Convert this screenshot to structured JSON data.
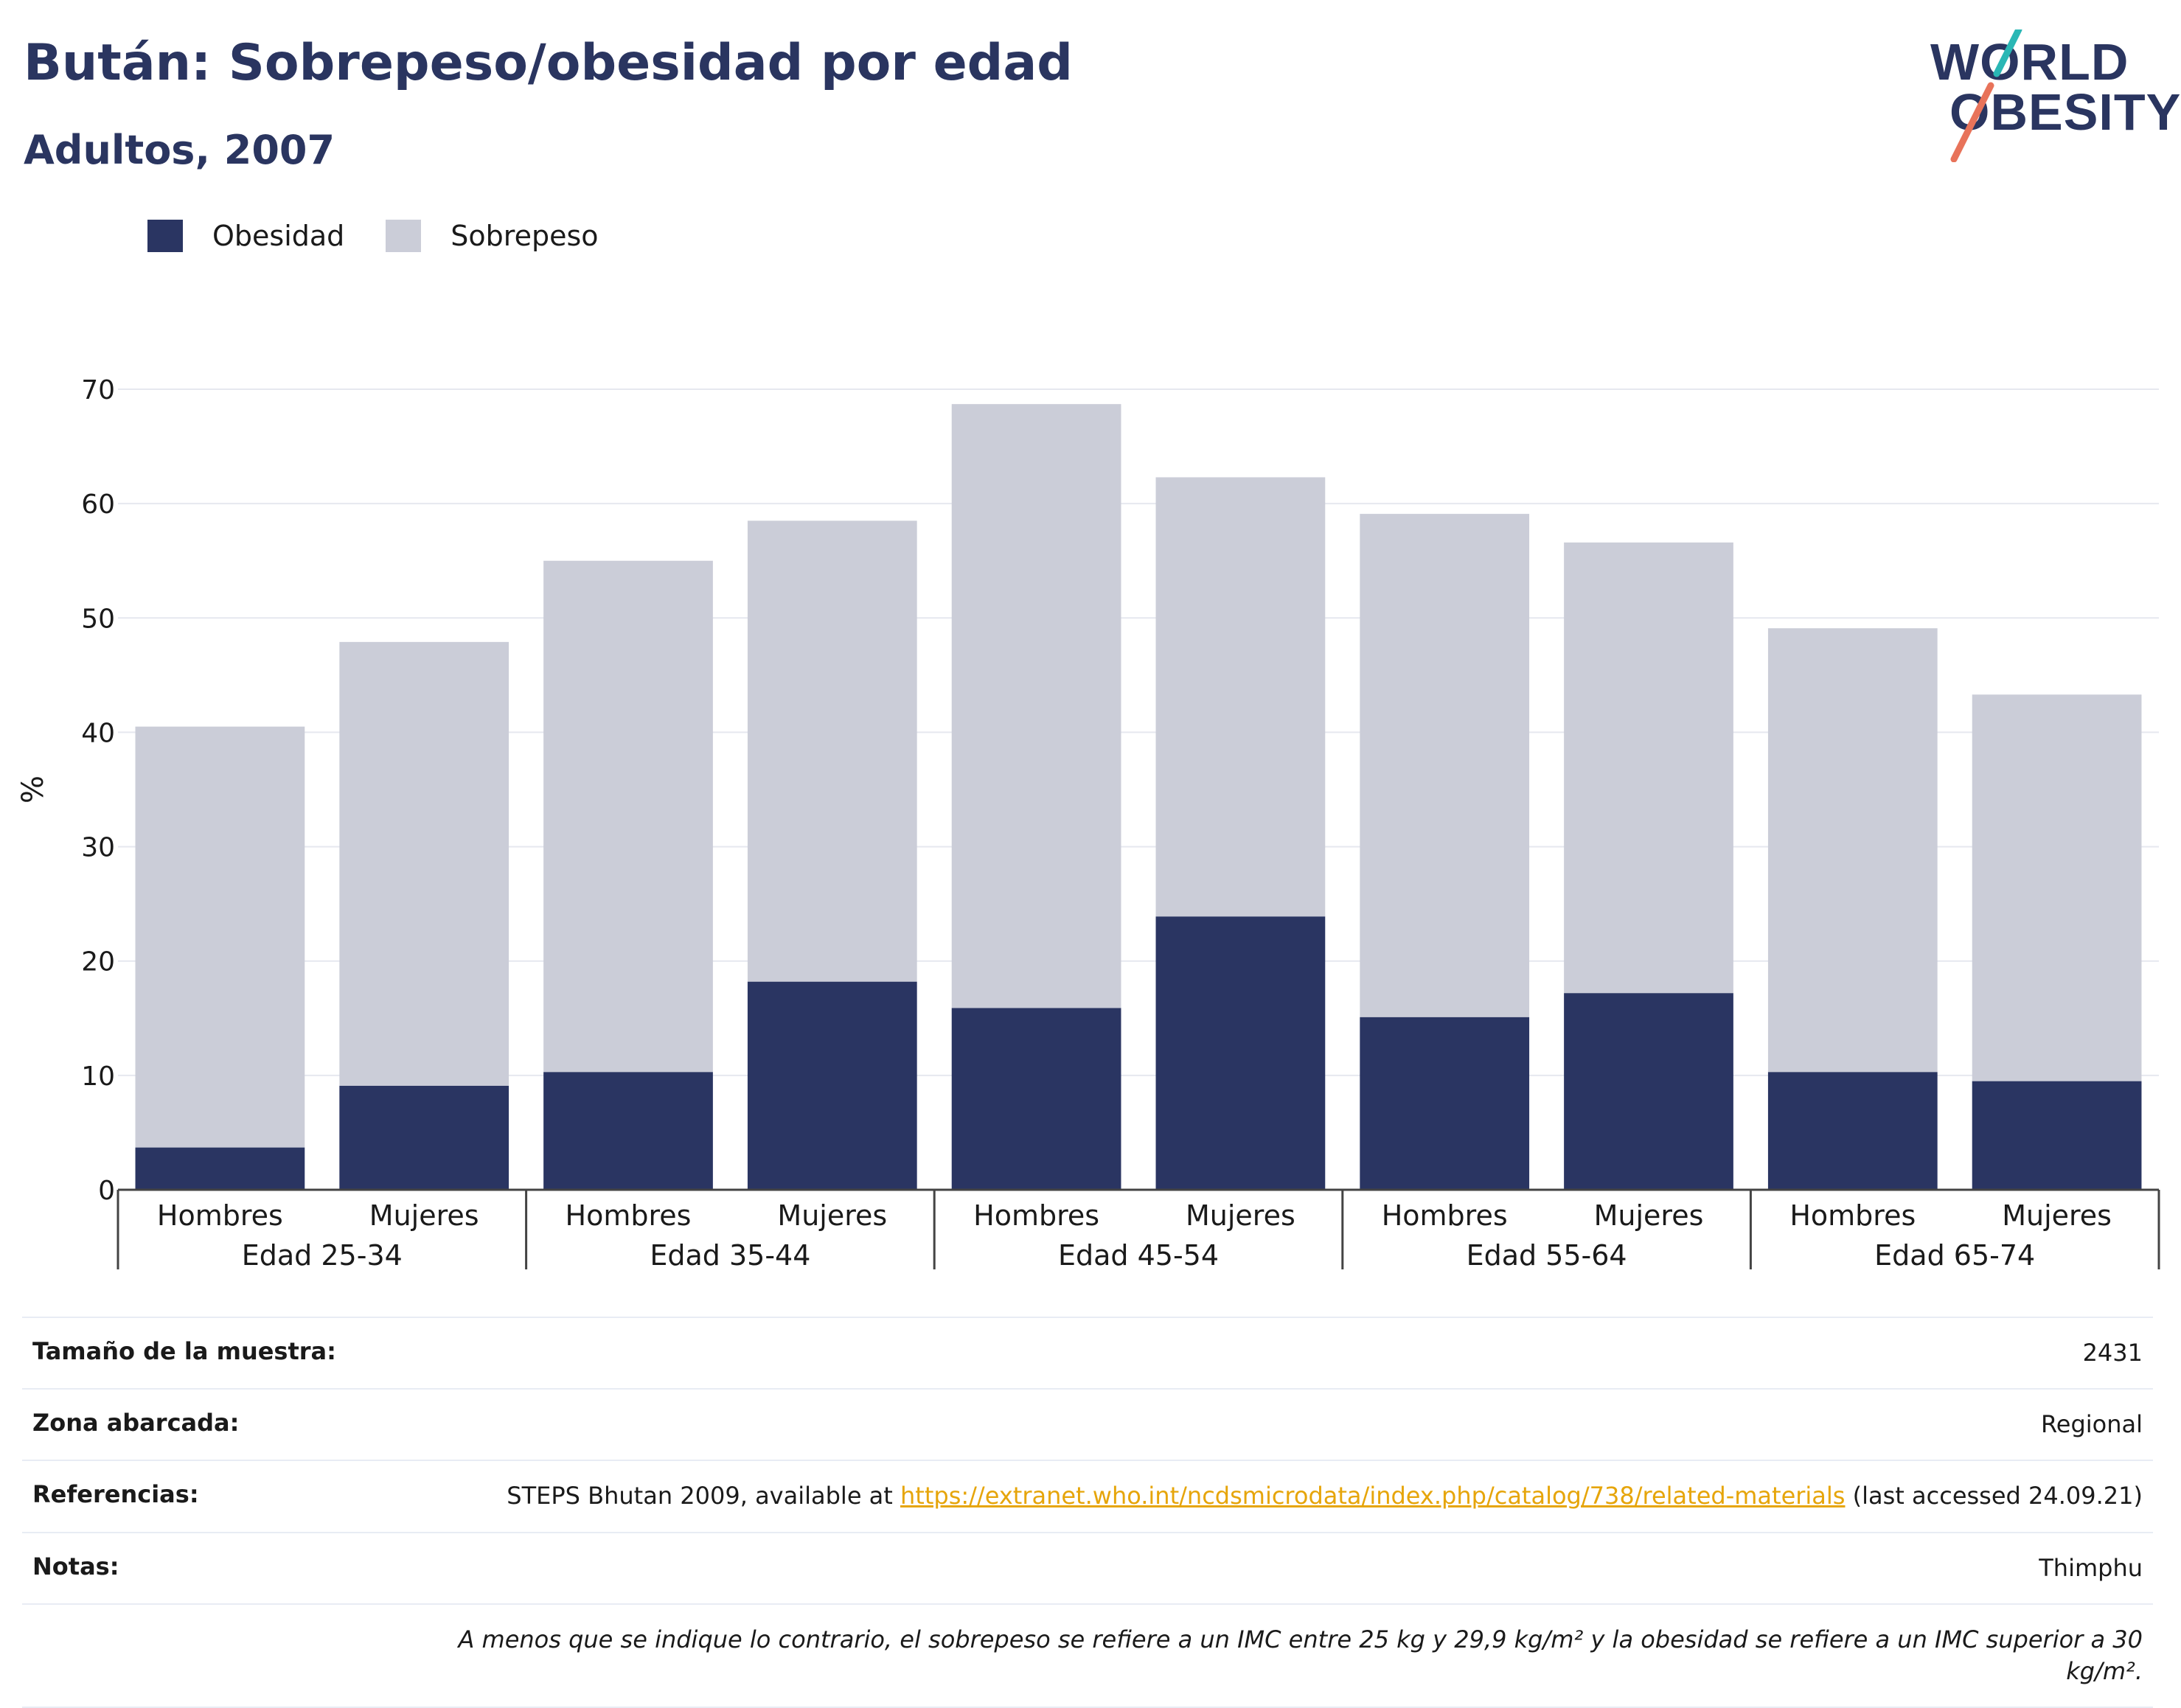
{
  "header": {
    "title": "Bután: Sobrepeso/obesidad por edad",
    "subtitle": "Adultos, 2007"
  },
  "logo": {
    "line1": "WORLD",
    "line2": "OBESITY"
  },
  "colors": {
    "obesity": "#2a3562",
    "overweight": "#cbcdd8",
    "brand": "#2a3560",
    "link": "#e6a50a",
    "logo_teal": "#2ab7b5",
    "logo_orange": "#e8735a"
  },
  "chart_data": {
    "type": "bar",
    "stacked": true,
    "ylabel": "%",
    "ylim": [
      0,
      70
    ],
    "yticks": [
      0,
      10,
      20,
      30,
      40,
      50,
      60,
      70
    ],
    "grid": true,
    "legend_position": "top-left",
    "groups": [
      "Edad 25-34",
      "Edad 35-44",
      "Edad 45-54",
      "Edad 55-64",
      "Edad 65-74"
    ],
    "subcategories": [
      "Hombres",
      "Mujeres"
    ],
    "categories": [
      "Hombres",
      "Mujeres",
      "Hombres",
      "Mujeres",
      "Hombres",
      "Mujeres",
      "Hombres",
      "Mujeres",
      "Hombres",
      "Mujeres"
    ],
    "series": [
      {
        "name": "Obesidad",
        "values": [
          3.7,
          9.1,
          10.3,
          18.2,
          15.9,
          23.9,
          15.1,
          17.2,
          10.3,
          9.5
        ]
      },
      {
        "name": "Sobrepeso",
        "values": [
          36.8,
          38.8,
          44.7,
          40.3,
          52.8,
          38.4,
          44.0,
          39.4,
          38.8,
          33.8
        ]
      }
    ]
  },
  "info": {
    "sample_label": "Tamaño de la muestra:",
    "sample_value": "2431",
    "area_label": "Zona abarcada:",
    "area_value": "Regional",
    "refs_label": "Referencias:",
    "refs_prefix": "STEPS Bhutan 2009, available at ",
    "refs_link": "https://extranet.who.int/ncdsmicrodata/index.php/catalog/738/related-materials",
    "refs_suffix": " (last accessed 24.09.21)",
    "notes_label": "Notas:",
    "notes_value": "Thimphu",
    "footnote": "A menos que se indique lo contrario, el sobrepeso se refiere a un IMC entre 25 kg y 29,9 kg/m² y la obesidad se refiere a un IMC superior a 30 kg/m²."
  }
}
